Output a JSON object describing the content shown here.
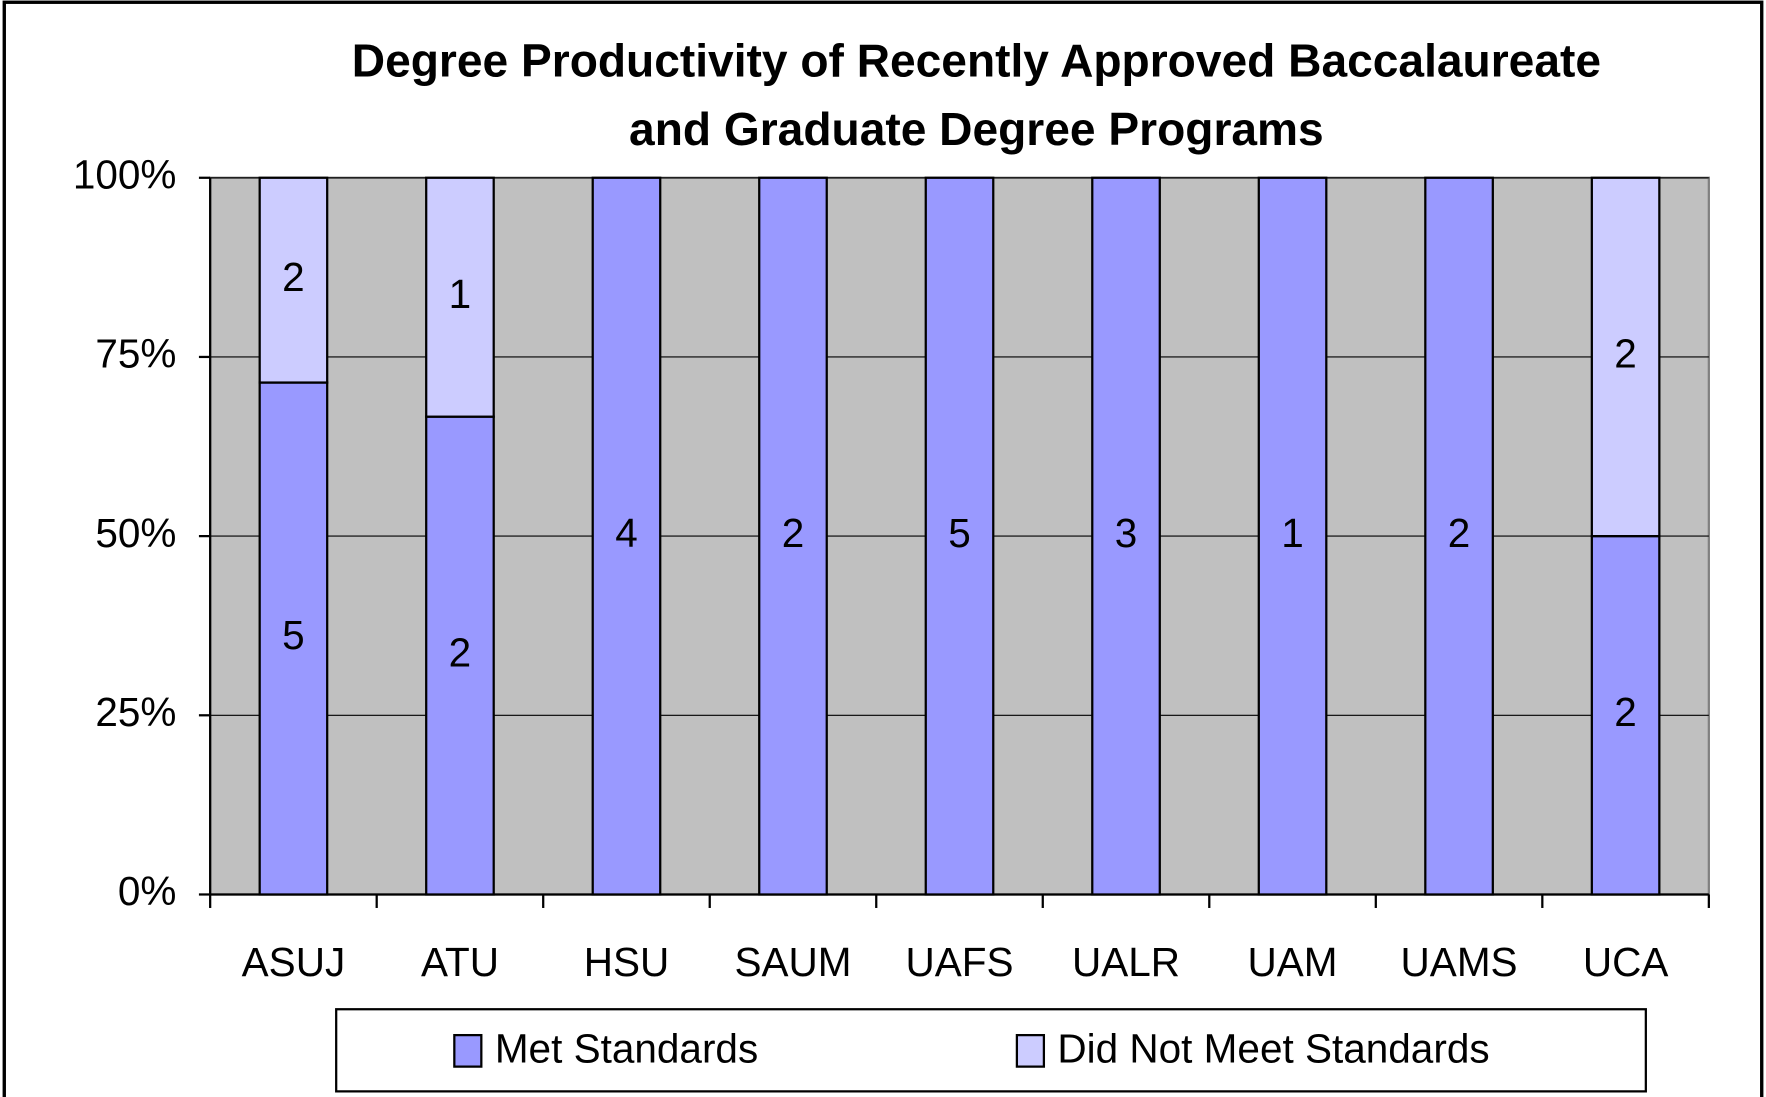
{
  "chart_data": {
    "type": "bar",
    "stacked": "percent",
    "title": [
      "Degree Productivity of Recently Approved Baccalaureate",
      "and Graduate Degree Programs"
    ],
    "categories": [
      "ASUJ",
      "ATU",
      "HSU",
      "SAUM",
      "UAFS",
      "UALR",
      "UAM",
      "UAMS",
      "UCA"
    ],
    "series": [
      {
        "name": "Met Standards",
        "color": "#9999ff",
        "values": [
          5,
          2,
          4,
          2,
          5,
          3,
          1,
          2,
          2
        ]
      },
      {
        "name": "Did Not Meet Standards",
        "color": "#ccccff",
        "values": [
          2,
          1,
          0,
          0,
          0,
          0,
          0,
          0,
          2
        ]
      }
    ],
    "ylim": [
      0,
      100
    ],
    "yticks": [
      {
        "value": 0,
        "label": "0%"
      },
      {
        "value": 25,
        "label": "25%"
      },
      {
        "value": 50,
        "label": "50%"
      },
      {
        "value": 75,
        "label": "75%"
      },
      {
        "value": 100,
        "label": "100%"
      }
    ],
    "grid": true,
    "plot_background": "#c0c0c0",
    "legend": "bottom"
  }
}
